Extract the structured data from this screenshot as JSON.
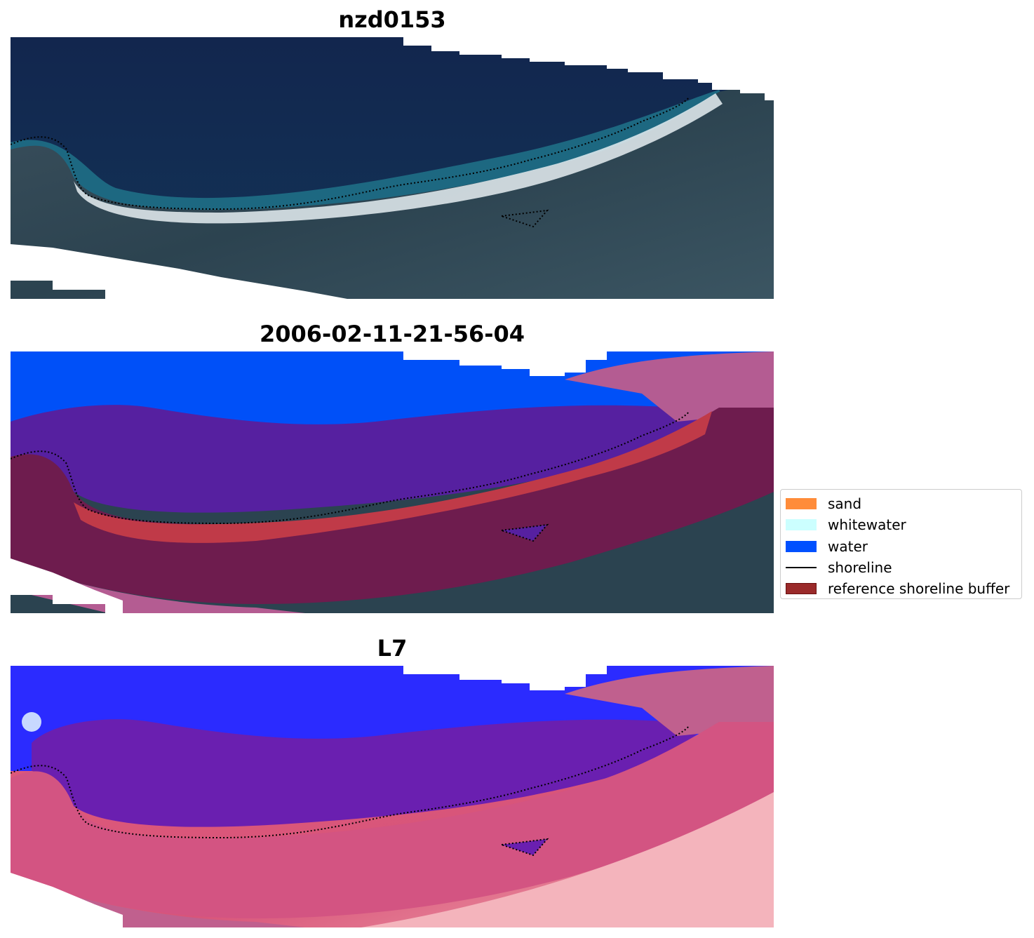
{
  "panels": {
    "rgb": {
      "title": "nzd0153"
    },
    "classified": {
      "title": "2006-02-11-21-56-04"
    },
    "mndwi": {
      "title": "L7"
    }
  },
  "legend": {
    "items": [
      {
        "label": "sand",
        "color": "#ff8c3a",
        "kind": "patch"
      },
      {
        "label": "whitewater",
        "color": "#ccffff",
        "kind": "patch"
      },
      {
        "label": "water",
        "color": "#0050ff",
        "kind": "patch"
      },
      {
        "label": "shoreline",
        "color": "#000000",
        "kind": "line"
      },
      {
        "label": "reference shoreline buffer",
        "color": "#9a2a2a",
        "kind": "patch"
      }
    ]
  }
}
